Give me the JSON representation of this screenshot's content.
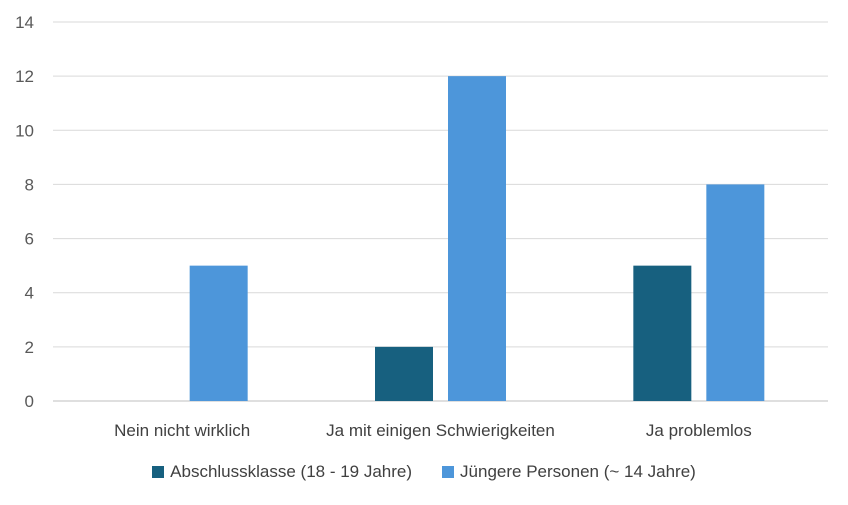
{
  "chart_data": {
    "type": "bar",
    "categories": [
      "Nein nicht wirklich",
      "Ja mit einigen Schwierigkeiten",
      "Ja problemlos"
    ],
    "series": [
      {
        "name": "Abschlussklasse (18 - 19 Jahre)",
        "values": [
          0,
          2,
          5
        ],
        "color": "#17607F"
      },
      {
        "name": "Jüngere Personen (~ 14 Jahre)",
        "values": [
          5,
          12,
          8
        ],
        "color": "#4D96DA"
      }
    ],
    "ylim": [
      0,
      14
    ],
    "yticks": [
      0,
      2,
      4,
      6,
      8,
      10,
      12,
      14
    ],
    "grid": true,
    "legend": "bottom"
  }
}
